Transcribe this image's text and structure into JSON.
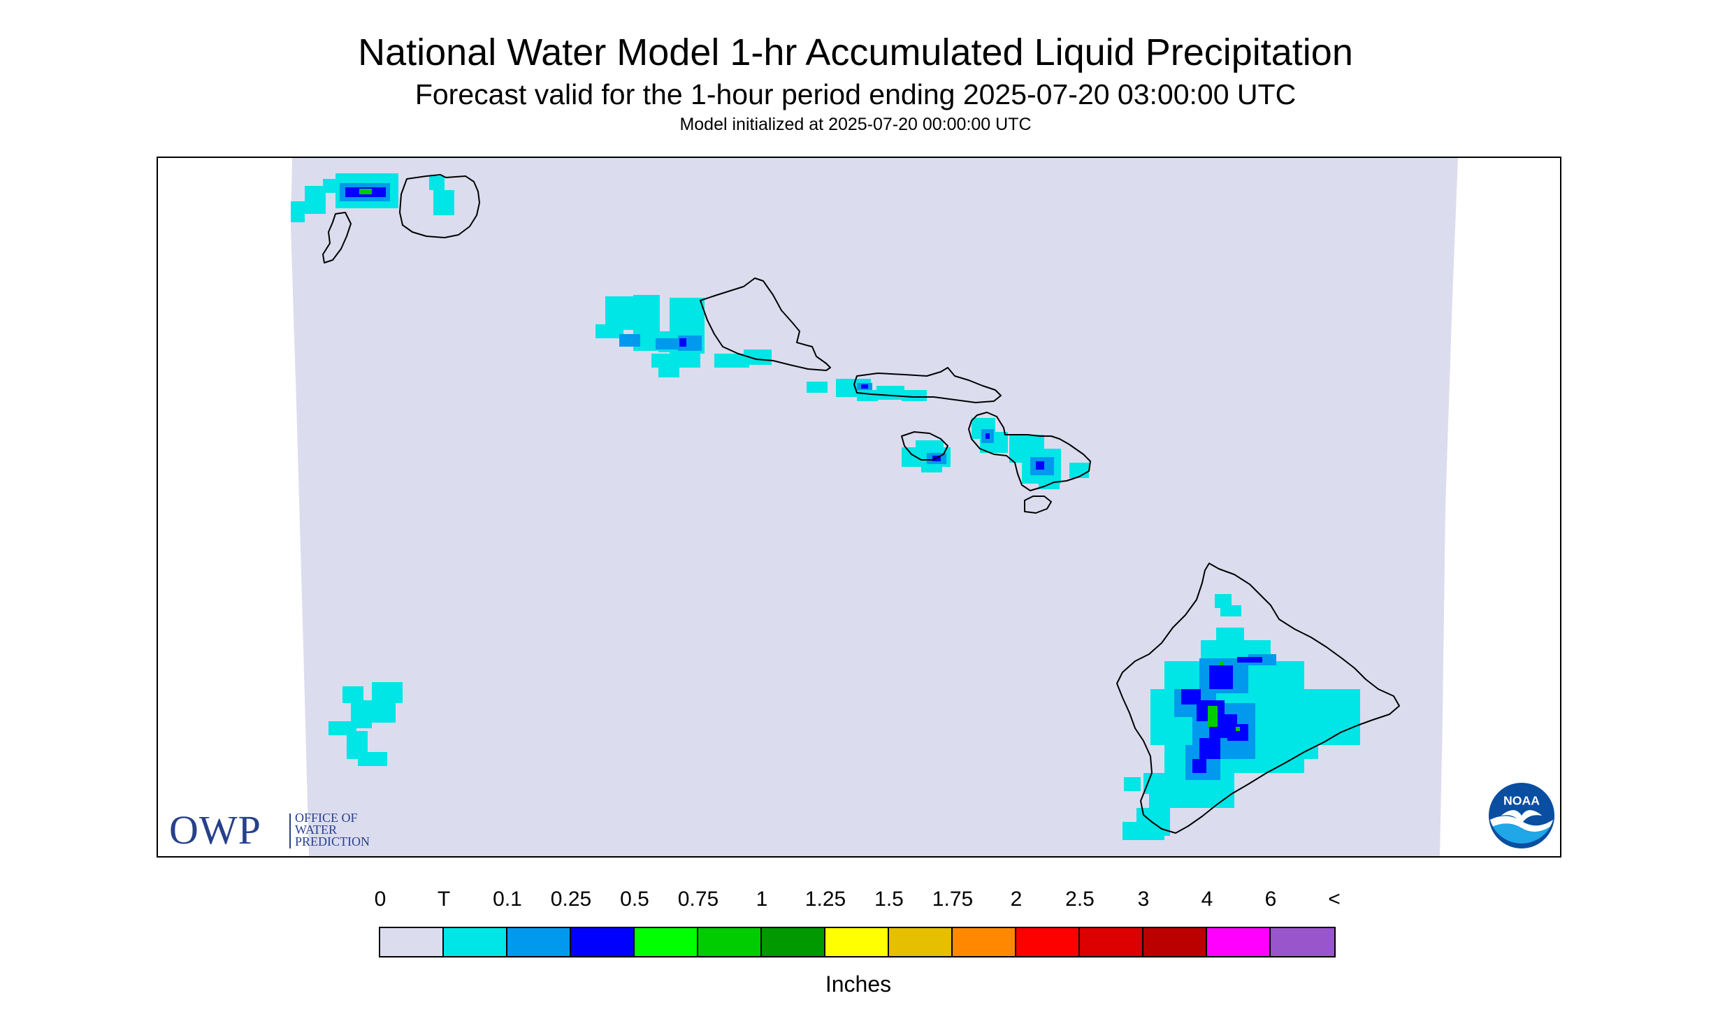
{
  "title": "National Water Model 1-hr Accumulated Liquid Precipitation",
  "subtitle": "Forecast valid for the 1-hour period ending 2025-07-20 03:00:00 UTC",
  "model_init": "Model initialized at 2025-07-20 00:00:00 UTC",
  "owp_logo": {
    "letters": "OWP",
    "line1": "OFFICE OF",
    "line2": "WATER",
    "line3": "PREDICTION"
  },
  "noaa_logo": {
    "text": "NOAA"
  },
  "legend": {
    "unit": "Inches",
    "labels": [
      "0",
      "T",
      "0.1",
      "0.25",
      "0.5",
      "0.75",
      "1",
      "1.25",
      "1.5",
      "1.75",
      "2",
      "2.5",
      "3",
      "4",
      "6",
      "<"
    ],
    "colors": [
      "#dcdcef",
      "#00e5e5",
      "#0099ee",
      "#0000ff",
      "#00ff00",
      "#00cc00",
      "#009900",
      "#ffff00",
      "#e5bf00",
      "#ff8800",
      "#ff0000",
      "#dd0000",
      "#bb0000",
      "#ff00ff",
      "#9955cc"
    ]
  },
  "colors": {
    "background": "#dcdcef",
    "coastline": "#000000",
    "trace": "#00e5e5",
    "light": "#0099ee",
    "moderate": "#0000ff",
    "heavy": "#00cc00",
    "owp_blue": "#27408b"
  },
  "icons": [
    "owp-logo",
    "noaa-logo"
  ]
}
